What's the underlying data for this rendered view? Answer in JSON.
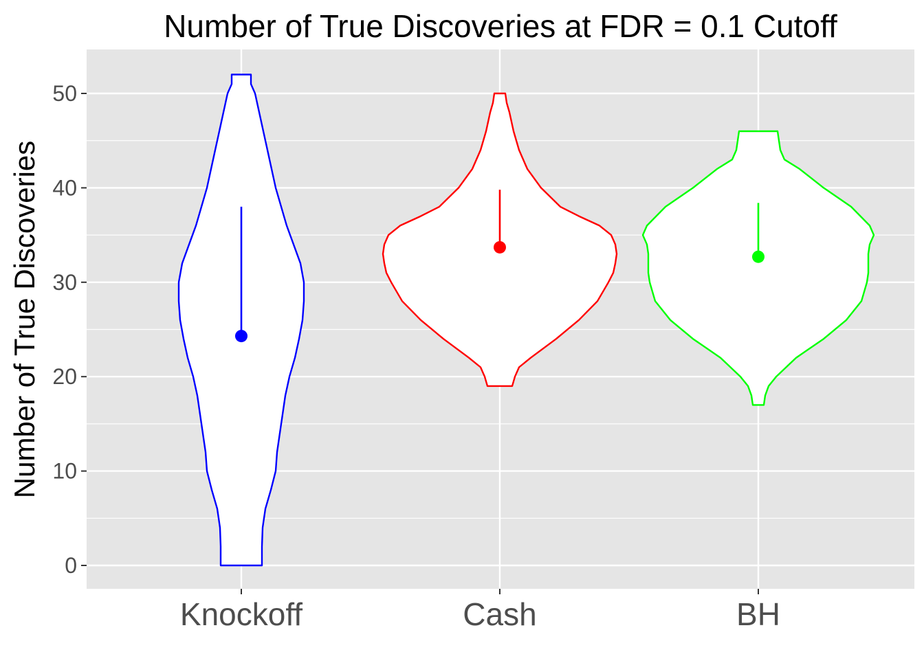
{
  "chart_data": {
    "type": "violin",
    "title": "Number of True Discoveries at FDR = 0.1 Cutoff",
    "xlabel": "",
    "ylabel": "Number of True Discoveries",
    "categories": [
      "Knockoff",
      "Cash",
      "BH"
    ],
    "ylim": [
      -2.5,
      55
    ],
    "y_ticks": [
      0,
      10,
      20,
      30,
      40,
      50
    ],
    "y_tick_labels": [
      "0",
      "10",
      "20",
      "30",
      "40",
      "50"
    ],
    "grid": true,
    "legend": "none",
    "series": [
      {
        "category": "Knockoff",
        "color": "#0000ff",
        "mean": 24.3,
        "line_from": 24.3,
        "line_to": 38,
        "min": 0,
        "max": 52,
        "density_profile": [
          [
            0,
            30
          ],
          [
            2,
            30
          ],
          [
            4,
            31
          ],
          [
            6,
            35
          ],
          [
            8,
            43
          ],
          [
            10,
            50
          ],
          [
            12,
            52
          ],
          [
            14,
            56
          ],
          [
            16,
            60
          ],
          [
            18,
            64
          ],
          [
            20,
            70
          ],
          [
            22,
            78
          ],
          [
            24,
            84
          ],
          [
            26,
            89
          ],
          [
            28,
            91
          ],
          [
            30,
            91
          ],
          [
            32,
            86
          ],
          [
            34,
            76
          ],
          [
            36,
            66
          ],
          [
            38,
            58
          ],
          [
            40,
            50
          ],
          [
            42,
            44
          ],
          [
            44,
            38
          ],
          [
            46,
            32
          ],
          [
            48,
            26
          ],
          [
            50,
            20
          ],
          [
            51,
            14
          ],
          [
            52,
            14
          ]
        ]
      },
      {
        "category": "Cash",
        "color": "#ff0000",
        "mean": 33.7,
        "line_from": 33.7,
        "line_to": 39.8,
        "min": 19,
        "max": 50,
        "density_profile": [
          [
            19,
            18
          ],
          [
            20,
            22
          ],
          [
            21,
            28
          ],
          [
            22,
            45
          ],
          [
            24,
            82
          ],
          [
            26,
            115
          ],
          [
            28,
            142
          ],
          [
            30,
            158
          ],
          [
            31,
            165
          ],
          [
            32,
            168
          ],
          [
            33,
            170
          ],
          [
            34,
            168
          ],
          [
            35,
            162
          ],
          [
            36,
            145
          ],
          [
            37,
            115
          ],
          [
            38,
            88
          ],
          [
            40,
            60
          ],
          [
            42,
            40
          ],
          [
            44,
            28
          ],
          [
            46,
            20
          ],
          [
            48,
            14
          ],
          [
            49,
            10
          ],
          [
            50,
            8
          ]
        ]
      },
      {
        "category": "BH",
        "color": "#00ff00",
        "mean": 32.7,
        "line_from": 32.7,
        "line_to": 38.4,
        "min": 17,
        "max": 46,
        "density_profile": [
          [
            17,
            8
          ],
          [
            18,
            10
          ],
          [
            19,
            15
          ],
          [
            20,
            26
          ],
          [
            22,
            55
          ],
          [
            24,
            95
          ],
          [
            26,
            128
          ],
          [
            28,
            150
          ],
          [
            30,
            158
          ],
          [
            31,
            160
          ],
          [
            32,
            160
          ],
          [
            33,
            160
          ],
          [
            34,
            162
          ],
          [
            35,
            168
          ],
          [
            36,
            162
          ],
          [
            38,
            135
          ],
          [
            40,
            95
          ],
          [
            42,
            60
          ],
          [
            43,
            38
          ],
          [
            44,
            32
          ],
          [
            45,
            30
          ],
          [
            46,
            28
          ]
        ]
      }
    ]
  }
}
